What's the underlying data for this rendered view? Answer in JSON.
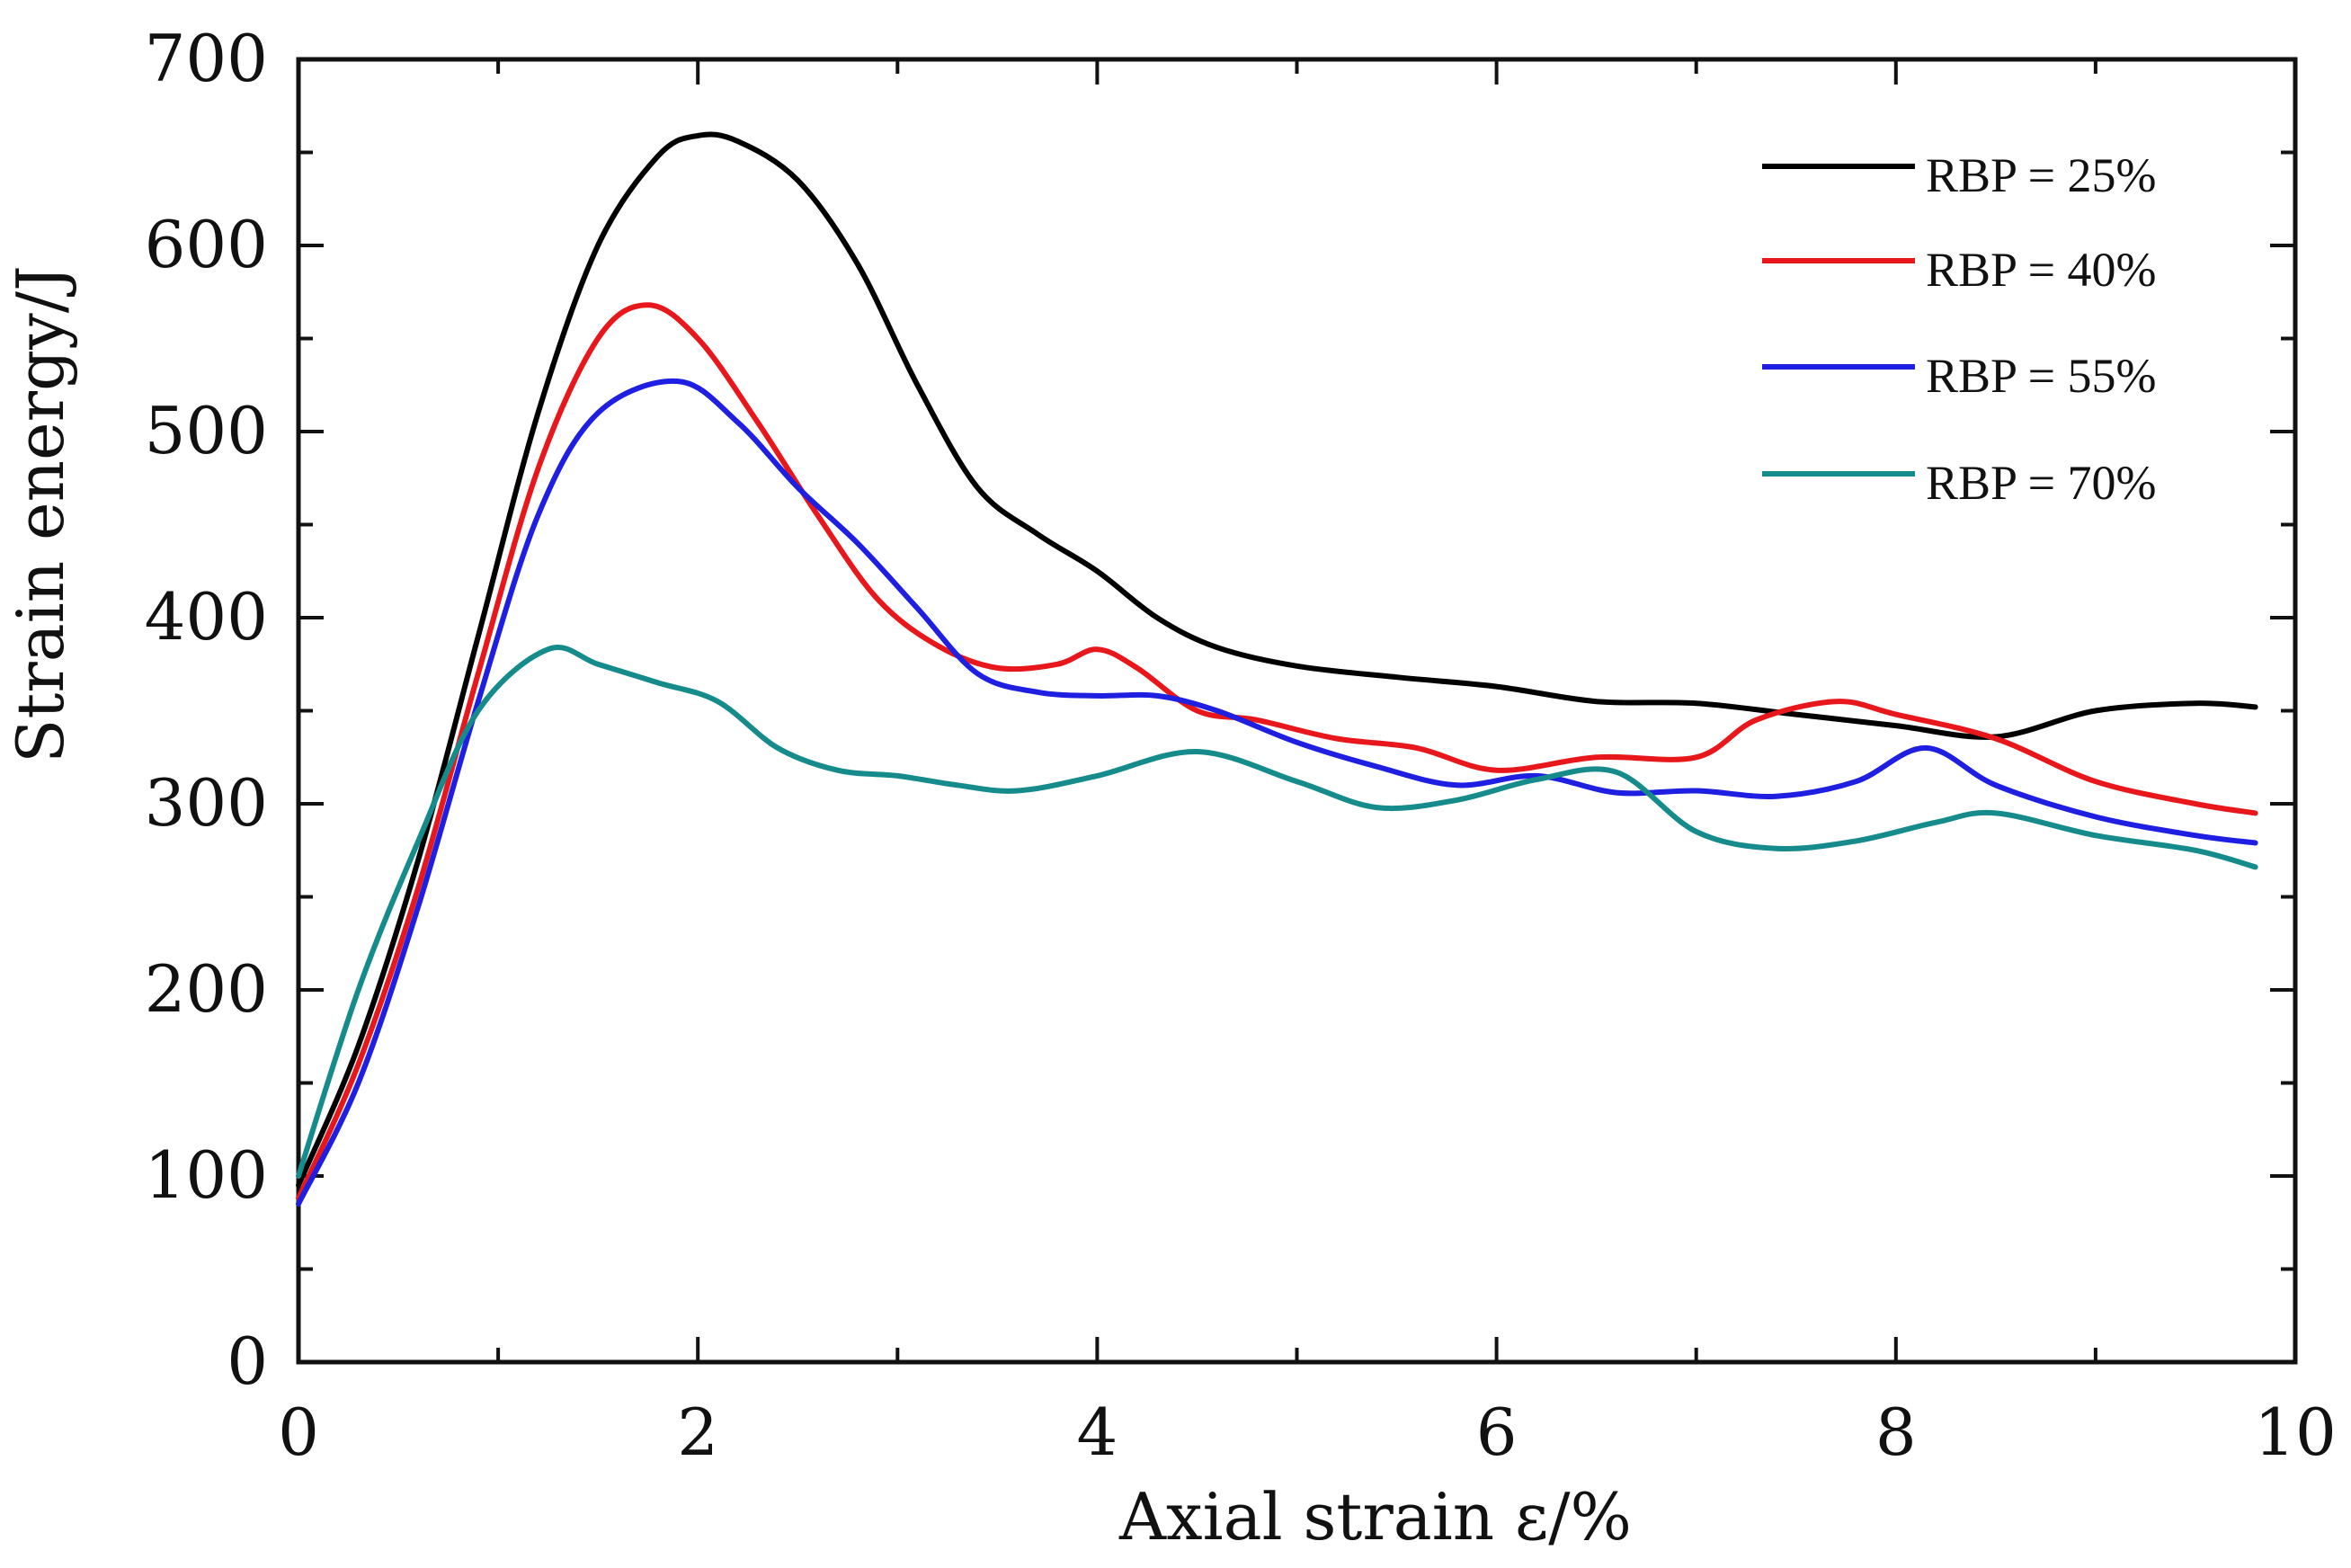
{
  "chart_data": {
    "type": "line",
    "title": "",
    "xlabel": "Axial strain  ε/%",
    "ylabel": "Strain energy/J",
    "xlim": [
      0,
      10
    ],
    "ylim": [
      0,
      700
    ],
    "xticks": [
      0,
      2,
      4,
      6,
      8,
      10
    ],
    "xtick_labels": [
      "0",
      "2",
      "4",
      "6",
      "8",
      "10"
    ],
    "yticks": [
      0,
      100,
      200,
      300,
      400,
      500,
      600,
      700
    ],
    "ytick_labels": [
      "0",
      "100",
      "200",
      "300",
      "400",
      "500",
      "600",
      "700"
    ],
    "grid": false,
    "legend_position": "top-right",
    "series": [
      {
        "name": "RBP = 25%",
        "color": "#000000",
        "x": [
          0,
          0.3,
          0.6,
          0.9,
          1.2,
          1.5,
          1.8,
          2.0,
          2.2,
          2.5,
          2.8,
          3.1,
          3.4,
          3.7,
          4.0,
          4.3,
          4.6,
          5.0,
          5.5,
          6.0,
          6.5,
          7.0,
          7.5,
          8.0,
          8.5,
          9.0,
          9.5,
          9.8
        ],
        "y": [
          95,
          170,
          270,
          390,
          510,
          600,
          648,
          659,
          656,
          635,
          590,
          525,
          470,
          445,
          425,
          400,
          384,
          374,
          368,
          363,
          355,
          354,
          348,
          342,
          336,
          350,
          354,
          352
        ]
      },
      {
        "name": "RBP = 40%",
        "color": "#e8171c",
        "x": [
          0,
          0.3,
          0.6,
          0.9,
          1.2,
          1.5,
          1.75,
          2.0,
          2.3,
          2.6,
          2.9,
          3.2,
          3.5,
          3.8,
          4.0,
          4.2,
          4.5,
          4.8,
          5.2,
          5.6,
          6.0,
          6.5,
          7.0,
          7.3,
          7.7,
          8.0,
          8.5,
          9.0,
          9.5,
          9.8
        ],
        "y": [
          88,
          160,
          255,
          370,
          480,
          550,
          568,
          550,
          505,
          455,
          410,
          385,
          373,
          375,
          383,
          373,
          350,
          345,
          335,
          330,
          318,
          325,
          325,
          345,
          355,
          348,
          335,
          312,
          300,
          295
        ]
      },
      {
        "name": "RBP = 55%",
        "color": "#1e1fe0",
        "x": [
          0,
          0.3,
          0.6,
          0.9,
          1.2,
          1.5,
          1.9,
          2.2,
          2.5,
          2.8,
          3.1,
          3.4,
          3.7,
          4.0,
          4.3,
          4.6,
          5.0,
          5.4,
          5.8,
          6.2,
          6.6,
          7.0,
          7.4,
          7.8,
          8.15,
          8.5,
          9.0,
          9.5,
          9.8
        ],
        "y": [
          85,
          150,
          245,
          355,
          455,
          510,
          527,
          505,
          470,
          440,
          405,
          370,
          360,
          358,
          358,
          350,
          333,
          320,
          310,
          315,
          306,
          307,
          304,
          312,
          330,
          310,
          293,
          283,
          279
        ]
      },
      {
        "name": "RBP = 70%",
        "color": "#168b8b",
        "x": [
          0,
          0.3,
          0.6,
          0.9,
          1.25,
          1.5,
          1.8,
          2.1,
          2.4,
          2.7,
          3.0,
          3.3,
          3.6,
          4.0,
          4.5,
          5.0,
          5.4,
          5.8,
          6.2,
          6.6,
          7.0,
          7.4,
          7.8,
          8.2,
          8.5,
          9.0,
          9.5,
          9.8
        ],
        "y": [
          100,
          200,
          280,
          350,
          383,
          375,
          365,
          355,
          330,
          318,
          315,
          310,
          307,
          315,
          328,
          312,
          298,
          302,
          313,
          317,
          285,
          276,
          280,
          290,
          295,
          283,
          275,
          266
        ]
      }
    ]
  }
}
